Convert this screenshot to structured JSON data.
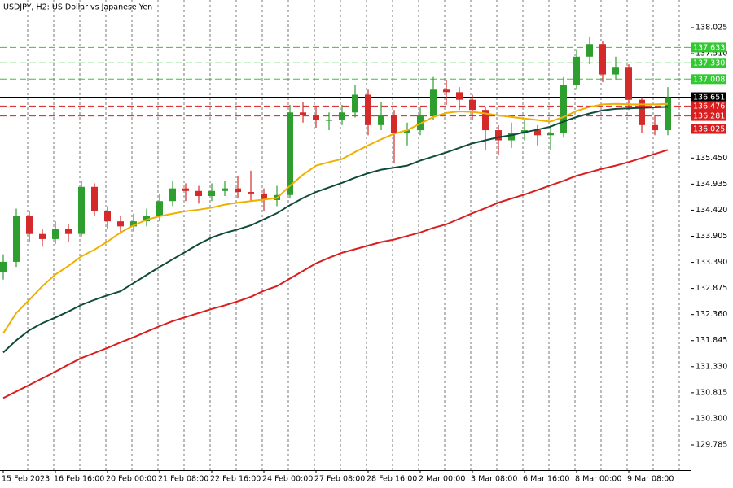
{
  "chart_data": {
    "type": "candlestick",
    "title": "USDJPY, H2:  US Dollar vs Japanese Yen",
    "categories": [
      "15 Feb 2023",
      null,
      null,
      null,
      "16 Feb 16:00",
      null,
      null,
      null,
      "20 Feb 00:00",
      null,
      null,
      null,
      "21 Feb 08:00",
      null,
      null,
      null,
      "22 Feb 16:00",
      null,
      null,
      null,
      "24 Feb 00:00",
      null,
      null,
      null,
      "27 Feb 08:00",
      null,
      null,
      null,
      "28 Feb 16:00",
      null,
      null,
      null,
      "2 Mar 00:00",
      null,
      null,
      null,
      "3 Mar 08:00",
      null,
      null,
      null,
      "6 Mar 16:00",
      null,
      null,
      null,
      "8 Mar 00:00",
      null,
      null,
      null,
      "9 Mar 08:00",
      null,
      null,
      null
    ],
    "open": [
      133.2,
      133.4,
      134.31,
      133.95,
      133.85,
      134.05,
      133.95,
      134.88,
      134.4,
      134.2,
      134.1,
      134.2,
      134.3,
      134.6,
      134.85,
      134.8,
      134.7,
      134.8,
      134.85,
      134.78,
      134.75,
      134.62,
      134.72,
      136.35,
      136.3,
      136.2,
      136.2,
      136.35,
      136.7,
      136.1,
      136.3,
      135.95,
      136.0,
      136.3,
      136.8,
      136.75,
      136.6,
      136.4,
      136.0,
      135.8,
      135.95,
      136.0,
      135.9,
      135.95,
      136.9,
      137.45,
      137.7,
      137.1,
      137.25,
      136.6,
      136.1,
      136.0
    ],
    "high": [
      133.55,
      134.45,
      134.4,
      134.05,
      134.2,
      134.15,
      135.0,
      134.95,
      134.5,
      134.3,
      134.35,
      134.45,
      134.75,
      135.0,
      134.95,
      134.9,
      134.95,
      135.0,
      135.1,
      135.2,
      134.85,
      134.9,
      136.5,
      136.55,
      136.45,
      136.35,
      136.5,
      136.9,
      136.8,
      136.55,
      136.4,
      136.15,
      136.45,
      137.05,
      137.0,
      136.85,
      136.7,
      136.45,
      136.1,
      136.15,
      136.2,
      136.1,
      136.1,
      137.05,
      137.6,
      137.85,
      137.75,
      137.45,
      137.3,
      136.65,
      136.3,
      136.85
    ],
    "low": [
      133.05,
      133.3,
      133.8,
      133.7,
      133.75,
      133.8,
      133.9,
      134.3,
      134.05,
      133.95,
      134.0,
      134.1,
      134.2,
      134.5,
      134.6,
      134.55,
      134.6,
      134.7,
      134.65,
      134.6,
      134.4,
      134.5,
      134.65,
      136.15,
      136.05,
      136.0,
      136.1,
      136.25,
      135.9,
      136.0,
      135.35,
      135.7,
      135.9,
      136.2,
      136.5,
      136.4,
      136.2,
      135.6,
      135.5,
      135.65,
      135.8,
      135.7,
      135.6,
      135.85,
      136.8,
      137.3,
      136.95,
      137.0,
      136.4,
      135.95,
      135.9,
      135.9
    ],
    "close": [
      133.4,
      134.31,
      133.95,
      133.85,
      134.05,
      133.95,
      134.88,
      134.4,
      134.2,
      134.1,
      134.2,
      134.3,
      134.6,
      134.85,
      134.8,
      134.7,
      134.8,
      134.85,
      134.78,
      134.75,
      134.62,
      134.72,
      136.35,
      136.3,
      136.2,
      136.2,
      136.35,
      136.7,
      136.1,
      136.3,
      135.95,
      136.0,
      136.3,
      136.8,
      136.75,
      136.6,
      136.4,
      136.0,
      135.8,
      135.95,
      136.0,
      135.9,
      135.95,
      136.9,
      137.45,
      137.7,
      137.1,
      137.25,
      136.6,
      136.1,
      136.0,
      136.65
    ],
    "up_color": "#2e9e2e",
    "down_color": "#d42a2a",
    "series": [
      {
        "color": "#f0b000",
        "values": [
          131.99,
          132.39,
          132.65,
          132.92,
          133.15,
          133.32,
          133.51,
          133.64,
          133.8,
          133.98,
          134.12,
          134.23,
          134.3,
          134.35,
          134.4,
          134.43,
          134.47,
          134.53,
          134.57,
          134.6,
          134.63,
          134.66,
          134.9,
          135.12,
          135.3,
          135.37,
          135.43,
          135.57,
          135.7,
          135.82,
          135.93,
          136.0,
          136.13,
          136.26,
          136.34,
          136.37,
          136.36,
          136.33,
          136.29,
          136.26,
          136.23,
          136.2,
          136.17,
          136.26,
          136.38,
          136.46,
          136.51,
          136.52,
          136.51,
          136.51,
          136.51,
          136.52
        ]
      },
      {
        "color": "#0f4a3a",
        "values": [
          131.61,
          131.85,
          132.05,
          132.19,
          132.3,
          132.42,
          132.55,
          132.65,
          132.74,
          132.82,
          132.98,
          133.14,
          133.3,
          133.45,
          133.6,
          133.75,
          133.88,
          133.97,
          134.04,
          134.12,
          134.24,
          134.36,
          134.52,
          134.66,
          134.78,
          134.87,
          134.96,
          135.06,
          135.15,
          135.22,
          135.26,
          135.3,
          135.4,
          135.48,
          135.56,
          135.65,
          135.74,
          135.8,
          135.86,
          135.9,
          135.96,
          136.01,
          136.07,
          136.17,
          136.26,
          136.33,
          136.39,
          136.42,
          136.43,
          136.44,
          136.45,
          136.46
        ]
      },
      {
        "color": "#d81e1e",
        "values": [
          130.71,
          130.84,
          130.97,
          131.1,
          131.23,
          131.37,
          131.5,
          131.6,
          131.7,
          131.81,
          131.91,
          132.02,
          132.13,
          132.23,
          132.31,
          132.39,
          132.47,
          132.54,
          132.62,
          132.71,
          132.83,
          132.92,
          133.07,
          133.22,
          133.37,
          133.48,
          133.58,
          133.65,
          133.72,
          133.79,
          133.84,
          133.91,
          133.98,
          134.07,
          134.14,
          134.25,
          134.36,
          134.46,
          134.57,
          134.65,
          134.73,
          134.82,
          134.91,
          135.0,
          135.1,
          135.17,
          135.24,
          135.3,
          135.37,
          135.45,
          135.53,
          135.61
        ]
      }
    ],
    "levels": [
      {
        "value": 137.633,
        "color": "#32c832",
        "style": "dashed"
      },
      {
        "value": 137.33,
        "label": "137.330",
        "color": "#32c832",
        "style": "dashed"
      },
      {
        "value": 137.008,
        "color": "#32c832",
        "style": "dashed"
      },
      {
        "value": 136.651,
        "color": "#000000",
        "style": "solid"
      },
      {
        "value": 136.476,
        "color": "#d81e1e",
        "style": "dashed"
      },
      {
        "value": 136.281,
        "color": "#d81e1e",
        "style": "dashed"
      },
      {
        "value": 136.025,
        "label": "136.025",
        "color": "#d81e1e",
        "style": "dashed"
      }
    ],
    "ylim": [
      129.287,
      138.571
    ],
    "yticks": [
      138.025,
      {
        "value": 137.51,
        "label": "137.510"
      },
      {
        "value": 135.45,
        "label": "135.450"
      },
      134.935,
      {
        "value": 134.42,
        "label": "134.420"
      },
      133.905,
      {
        "value": 133.39,
        "label": "133.390"
      },
      132.875,
      {
        "value": 132.36,
        "label": "132.360"
      },
      131.845,
      {
        "value": 131.33,
        "label": "131.330"
      },
      130.815,
      {
        "value": 130.3,
        "label": "130.300"
      },
      129.785
    ],
    "grid": true
  }
}
